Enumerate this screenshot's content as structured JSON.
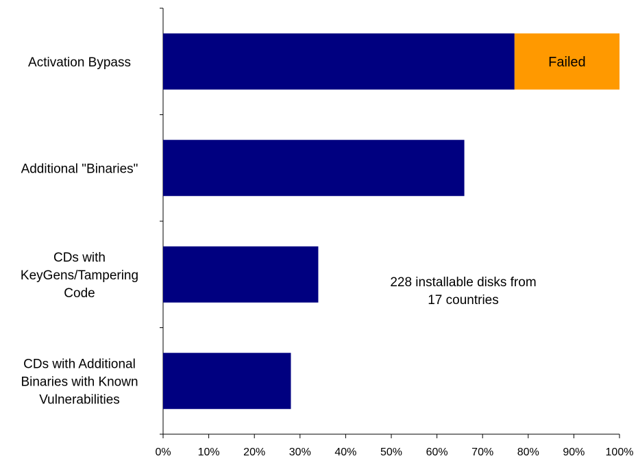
{
  "chart_data": {
    "type": "bar",
    "orientation": "horizontal",
    "stacked": true,
    "categories": [
      [
        "Activation Bypass"
      ],
      [
        "Additional \"Binaries\""
      ],
      [
        "CDs with",
        "KeyGens/Tampering",
        "Code"
      ],
      [
        "CDs with Additional",
        "Binaries with Known",
        "Vulnerabilities"
      ]
    ],
    "series": [
      {
        "values": [
          77,
          66,
          34,
          28
        ],
        "color": "#000080"
      },
      {
        "values": [
          23,
          0,
          0,
          0
        ],
        "color": "#FF9900",
        "segment_labels": [
          "Failed",
          "",
          "",
          ""
        ]
      }
    ],
    "xlim": [
      0,
      100
    ],
    "x_ticks": [
      "0%",
      "10%",
      "20%",
      "30%",
      "40%",
      "50%",
      "60%",
      "70%",
      "80%",
      "90%",
      "100%"
    ],
    "x_tick_values": [
      0,
      10,
      20,
      30,
      40,
      50,
      60,
      70,
      80,
      90,
      100
    ],
    "annotation": [
      "228 installable disks from",
      "17 countries"
    ],
    "grid": false,
    "legend": "none"
  }
}
